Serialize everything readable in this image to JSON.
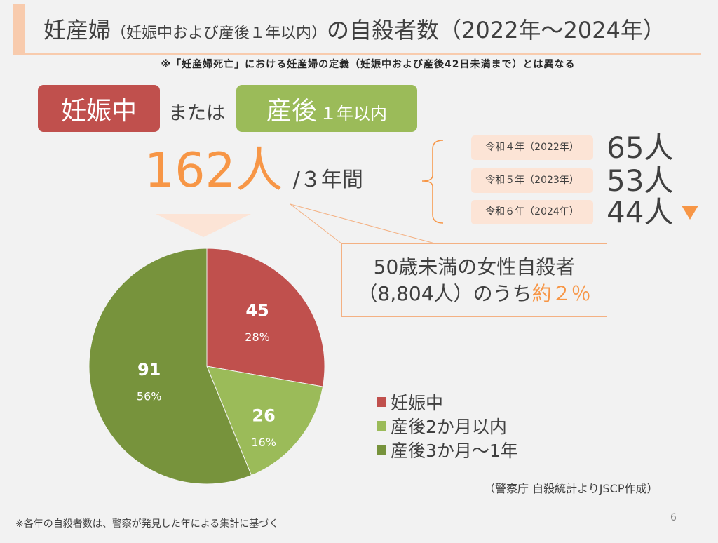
{
  "slide": {
    "background": "#F2F2F2",
    "page_number": "6"
  },
  "title": {
    "main": "妊産婦",
    "sub": "（妊娠中および産後１年以内）",
    "rest": "の自殺者数（2022年～2024年）"
  },
  "note": "※「妊産婦死亡」における妊産婦の定義（妊娠中および産後42日未満まで）とは異なる",
  "scope": {
    "pregnancy_label": "妊娠中",
    "connector": "または",
    "postpartum_label": "産後",
    "postpartum_range": "１年以内"
  },
  "total": {
    "count": "162人",
    "period": "/３年間"
  },
  "annual": [
    {
      "year": "令和４年（2022年）",
      "count": "65人"
    },
    {
      "year": "令和５年（2023年）",
      "count": "53人"
    },
    {
      "year": "令和６年（2024年）",
      "count": "44人",
      "trend_icon": "down-triangle-icon"
    }
  ],
  "callout": {
    "line1": "50歳未満の女性自殺者",
    "line2": "（8,804人）のうち",
    "highlight": "約２％"
  },
  "chart_data": {
    "type": "pie",
    "categories": [
      "妊娠中",
      "産後2か月以内",
      "産後3か月～1年"
    ],
    "values": [
      45,
      26,
      91
    ],
    "percent_labels": [
      "28%",
      "16%",
      "56%"
    ],
    "colors": [
      "#C0504D",
      "#9BBB59",
      "#77933C"
    ],
    "legend": "right"
  },
  "source": "（警察庁 自殺統計よりJSCP作成）",
  "footnote": "※各年の自殺者数は、警察が発見した年による集計に基づく",
  "colors": {
    "accent": "#F79646",
    "accent_light": "#FCE4D6",
    "title_bar": "#F8CBAD",
    "text": "#404040",
    "pregnancy": "#C0504D",
    "postpartum": "#9BBB59"
  }
}
